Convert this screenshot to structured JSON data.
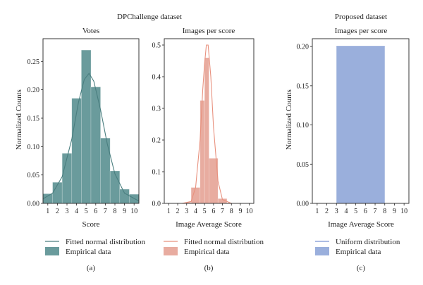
{
  "group_titles": [
    "DPChallenge dataset",
    "Proposed dataset"
  ],
  "chart_data": [
    {
      "type": "bar",
      "panel": "(a)",
      "title": "Votes",
      "xlabel": "Score",
      "ylabel": "Normalized Counts",
      "xlim": [
        0.5,
        10.5
      ],
      "ylim": [
        0,
        0.29
      ],
      "xticks": [
        "1",
        "2",
        "3",
        "4",
        "5",
        "6",
        "7",
        "8",
        "9",
        "10"
      ],
      "yticks": [
        "0.00",
        "0.05",
        "0.10",
        "0.15",
        "0.20",
        "0.25"
      ],
      "bar_color": "#6a9b9c",
      "line_color": "#4a7e7f",
      "bars": [
        {
          "x0": 0.5,
          "x1": 1.5,
          "value": 0.017
        },
        {
          "x0": 1.5,
          "x1": 2.5,
          "value": 0.037
        },
        {
          "x0": 2.5,
          "x1": 3.5,
          "value": 0.088
        },
        {
          "x0": 3.5,
          "x1": 4.5,
          "value": 0.185
        },
        {
          "x0": 4.5,
          "x1": 5.5,
          "value": 0.27
        },
        {
          "x0": 5.5,
          "x1": 6.5,
          "value": 0.205
        },
        {
          "x0": 6.5,
          "x1": 7.5,
          "value": 0.115
        },
        {
          "x0": 7.5,
          "x1": 8.5,
          "value": 0.057
        },
        {
          "x0": 8.5,
          "x1": 9.5,
          "value": 0.025
        },
        {
          "x0": 9.5,
          "x1": 10.5,
          "value": 0.016
        }
      ],
      "fit_curve": [
        {
          "x": 0.5,
          "y": 0.008
        },
        {
          "x": 1.5,
          "y": 0.018
        },
        {
          "x": 2.5,
          "y": 0.047
        },
        {
          "x": 3.5,
          "y": 0.113
        },
        {
          "x": 4.2,
          "y": 0.178
        },
        {
          "x": 4.8,
          "y": 0.218
        },
        {
          "x": 5.3,
          "y": 0.229
        },
        {
          "x": 5.8,
          "y": 0.215
        },
        {
          "x": 6.5,
          "y": 0.165
        },
        {
          "x": 7.2,
          "y": 0.105
        },
        {
          "x": 8.0,
          "y": 0.052
        },
        {
          "x": 9.0,
          "y": 0.018
        },
        {
          "x": 10.5,
          "y": 0.004
        }
      ],
      "legend": [
        {
          "kind": "line",
          "label": "Fitted normal distribution"
        },
        {
          "kind": "patch",
          "label": "Empirical data"
        }
      ]
    },
    {
      "type": "bar",
      "panel": "(b)",
      "title": "Images per score",
      "xlabel": "Image Average Score",
      "ylabel": "",
      "xlim": [
        0.5,
        10.5
      ],
      "ylim": [
        0,
        0.52
      ],
      "xticks": [
        "1",
        "2",
        "3",
        "4",
        "5",
        "6",
        "7",
        "8",
        "9",
        "10"
      ],
      "yticks": [
        "0.0",
        "0.1",
        "0.2",
        "0.3",
        "0.4",
        "0.5"
      ],
      "bar_color": "#e8aca0",
      "line_color": "#e8917e",
      "bars": [
        {
          "x0": 3.0,
          "x1": 3.5,
          "value": 0.004
        },
        {
          "x0": 3.5,
          "x1": 4.5,
          "value": 0.05
        },
        {
          "x0": 4.5,
          "x1": 5.0,
          "value": 0.325
        },
        {
          "x0": 5.0,
          "x1": 5.5,
          "value": 0.46
        },
        {
          "x0": 5.5,
          "x1": 6.5,
          "value": 0.142
        },
        {
          "x0": 6.5,
          "x1": 7.5,
          "value": 0.015
        },
        {
          "x0": 7.5,
          "x1": 8.0,
          "value": 0.002
        }
      ],
      "fit_curve": [
        {
          "x": 2.5,
          "y": 0.0
        },
        {
          "x": 3.5,
          "y": 0.006
        },
        {
          "x": 4.0,
          "y": 0.05
        },
        {
          "x": 4.5,
          "y": 0.2
        },
        {
          "x": 4.8,
          "y": 0.36
        },
        {
          "x": 5.0,
          "y": 0.44
        },
        {
          "x": 5.2,
          "y": 0.5
        },
        {
          "x": 5.4,
          "y": 0.5
        },
        {
          "x": 5.7,
          "y": 0.4
        },
        {
          "x": 6.0,
          "y": 0.24
        },
        {
          "x": 6.5,
          "y": 0.07
        },
        {
          "x": 7.0,
          "y": 0.012
        },
        {
          "x": 8.0,
          "y": 0.0
        }
      ],
      "legend": [
        {
          "kind": "line",
          "label": "Fitted normal distribution"
        },
        {
          "kind": "patch",
          "label": "Empirical data"
        }
      ]
    },
    {
      "type": "bar",
      "panel": "(c)",
      "title": "Images per score",
      "xlabel": "Image Average Score",
      "ylabel": "Normalized Counts",
      "xlim": [
        0.5,
        10.5
      ],
      "ylim": [
        0,
        0.21
      ],
      "xticks": [
        "1",
        "2",
        "3",
        "4",
        "5",
        "6",
        "7",
        "8",
        "9",
        "10"
      ],
      "yticks": [
        "0.00",
        "0.05",
        "0.10",
        "0.15",
        "0.20"
      ],
      "bar_color": "#9aafdc",
      "line_color": "#7a95d2",
      "bars": [
        {
          "x0": 3.0,
          "x1": 8.0,
          "value": 0.2
        }
      ],
      "fit_curve": [
        {
          "x": 3.0,
          "y": 0.2
        },
        {
          "x": 8.0,
          "y": 0.2
        }
      ],
      "legend": [
        {
          "kind": "line",
          "label": "Uniform distribution"
        },
        {
          "kind": "patch",
          "label": "Empirical data"
        }
      ]
    }
  ]
}
